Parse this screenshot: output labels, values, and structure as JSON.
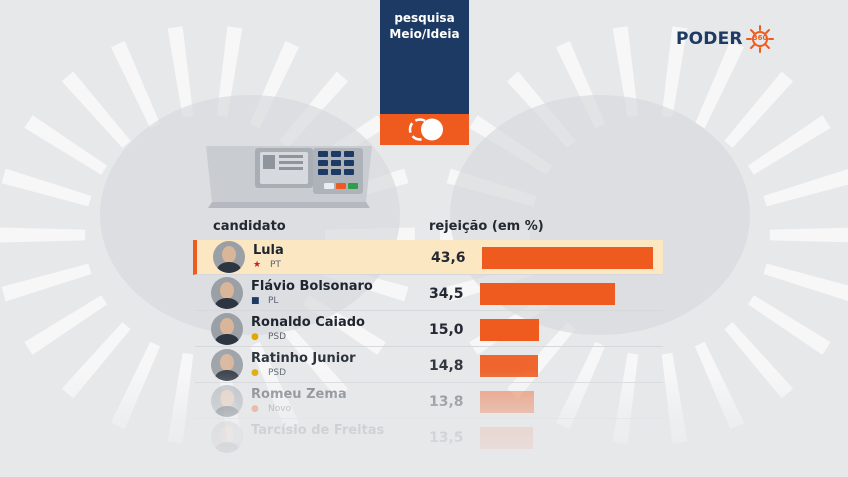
{
  "badge": {
    "line1": "pesquisa",
    "line2": "Meio/Ideia"
  },
  "logo": {
    "word": "PODER",
    "sub": "360"
  },
  "headers": {
    "candidate": "candidato",
    "rejection": "rejeição (em %)"
  },
  "colors": {
    "navy": "#1c3a64",
    "accent": "#ef5a1e",
    "highlight": "#fbe8c2"
  },
  "chart_data": {
    "type": "bar",
    "orientation": "horizontal",
    "categories": [
      "Lula",
      "Flávio Bolsonaro",
      "Ronaldo Caiado",
      "Ratinho Junior",
      "Romeu Zema",
      "Tarcísio de Freitas"
    ],
    "parties": [
      "PT",
      "PL",
      "PSD",
      "PSD",
      "Novo",
      ""
    ],
    "party_icons": [
      "pt-star-icon",
      "pl-logo-icon",
      "psd-logo-icon",
      "psd-logo-icon",
      "novo-logo-icon",
      ""
    ],
    "values": [
      43.6,
      34.5,
      15.0,
      14.8,
      13.8,
      13.5
    ],
    "value_labels": [
      "43,6",
      "34,5",
      "15,0",
      "14,8",
      "13,8",
      "13,5"
    ],
    "highlighted": "Lula",
    "xlim": [
      0,
      43.6
    ]
  }
}
